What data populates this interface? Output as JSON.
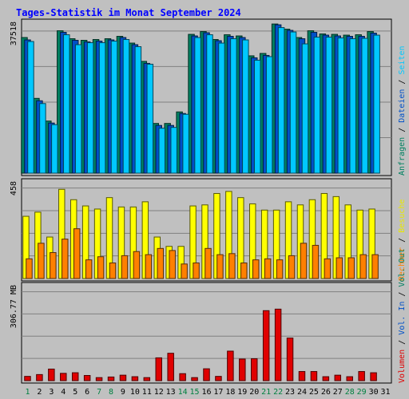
{
  "chart_data": {
    "type": "bar",
    "title": "Tages-Statistik im Monat September 2024",
    "x": [
      "1",
      "2",
      "3",
      "4",
      "5",
      "6",
      "7",
      "8",
      "9",
      "10",
      "11",
      "12",
      "13",
      "14",
      "15",
      "16",
      "17",
      "18",
      "19",
      "20",
      "21",
      "22",
      "23",
      "24",
      "25",
      "26",
      "27",
      "28",
      "29",
      "30",
      "31"
    ],
    "weekend_days": [
      "1",
      "7",
      "8",
      "14",
      "15",
      "21",
      "22",
      "28",
      "29"
    ],
    "panels": [
      {
        "id": "hits",
        "ymax_label": "37518",
        "ymax": 37518,
        "right_labels": [
          {
            "text": "Anfragen",
            "color": "#008060"
          },
          {
            "text": " / ",
            "color": "#000000"
          },
          {
            "text": "Dateien",
            "color": "#0050c8"
          },
          {
            "text": " / ",
            "color": "#000000"
          },
          {
            "text": "Seiten",
            "color": "#00c8ff"
          }
        ],
        "series": [
          {
            "name": "Anfragen",
            "color": "#008060",
            "values": [
              34100,
              18800,
              13100,
              35800,
              33800,
              33400,
              33600,
              33800,
              34400,
              32700,
              28100,
              12500,
              12500,
              15400,
              34900,
              35600,
              33600,
              34800,
              34500,
              29500,
              30100,
              37500,
              36200,
              34100,
              35800,
              35000,
              34900,
              34700,
              34800,
              35600,
              null
            ]
          },
          {
            "name": "Dateien",
            "color": "#0050c8",
            "values": [
              33500,
              18200,
              12600,
              35400,
              33400,
              33000,
              33200,
              33500,
              34100,
              32300,
              27600,
              12000,
              12000,
              15000,
              34500,
              35300,
              33300,
              34400,
              34100,
              29000,
              29600,
              37300,
              35900,
              33800,
              35400,
              34700,
              34500,
              34400,
              34400,
              35200,
              null
            ]
          },
          {
            "name": "Seiten",
            "color": "#00c8ff",
            "values": [
              33100,
              17500,
              12200,
              34800,
              32300,
              32800,
              32800,
              33200,
              33600,
              31800,
              27400,
              11300,
              11500,
              14800,
              34100,
              34800,
              32700,
              33800,
              33500,
              28400,
              29300,
              36600,
              35500,
              32500,
              34200,
              34200,
              34000,
              33800,
              33900,
              34700,
              null
            ]
          }
        ]
      },
      {
        "id": "visits",
        "ymax_label": "458",
        "ymax": 458,
        "right_labels": [
          {
            "text": "Rechner",
            "color": "#ff8000"
          },
          {
            "text": " / ",
            "color": "#000000"
          },
          {
            "text": "Besuche",
            "color": "#e8e800"
          }
        ],
        "series": [
          {
            "name": "Besuche",
            "color": "#ffff00",
            "values": [
              300,
              320,
              200,
              430,
              380,
              350,
              335,
              390,
              345,
              345,
              370,
              200,
              155,
              155,
              350,
              355,
              410,
              420,
              390,
              360,
              330,
              330,
              370,
              355,
              380,
              410,
              395,
              355,
              330,
              335,
              null
            ]
          },
          {
            "name": "Rechner",
            "color": "#ff8000",
            "values": [
              95,
              170,
              125,
              190,
              240,
              90,
              105,
              75,
              110,
              130,
              115,
              145,
              135,
              70,
              75,
              145,
              115,
              120,
              75,
              90,
              95,
              90,
              110,
              170,
              160,
              95,
              100,
              100,
              115,
              115,
              null
            ]
          }
        ]
      },
      {
        "id": "volume",
        "ymax_label": "306.77 MB",
        "ymax": 306.77,
        "unit": "MB",
        "right_labels": [
          {
            "text": "Volumen",
            "color": "#e00000"
          },
          {
            "text": " / ",
            "color": "#000000"
          },
          {
            "text": "Vol. In",
            "color": "#0050c8"
          },
          {
            "text": " / ",
            "color": "#000000"
          },
          {
            "text": "Vol. Out",
            "color": "#008060"
          }
        ],
        "series": [
          {
            "name": "Volumen",
            "color": "#e00000",
            "values": [
              14,
              20,
              38,
              24,
              26,
              17,
              10,
              12,
              18,
              13,
              10,
              75,
              90,
              23,
              10,
              39,
              14,
              97,
              71,
              72,
              230,
              235,
              140,
              30,
              30,
              13,
              18,
              13,
              30,
              26,
              null
            ]
          }
        ]
      }
    ]
  }
}
